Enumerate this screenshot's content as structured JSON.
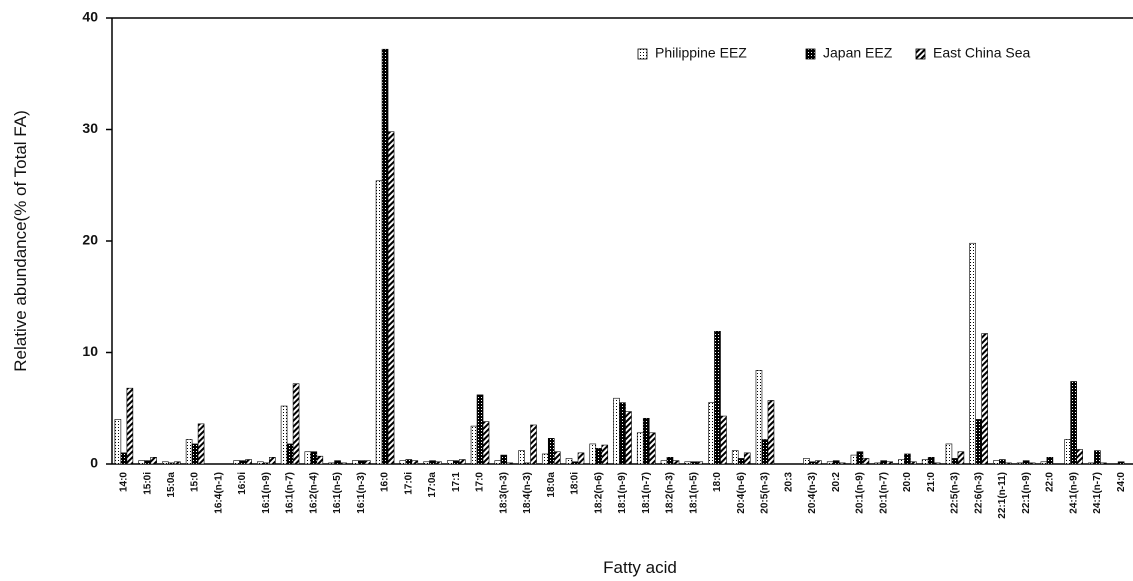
{
  "chart_data": {
    "type": "bar",
    "x_label": "Fatty acid",
    "y_label": "Relative abundance(% of Total FA)",
    "categories": [
      "14:0",
      "15:0i",
      "15:0a",
      "15:0",
      "16:4(n-1)",
      "16:0i",
      "16:1(n-9)",
      "16:1(n-7)",
      "16:2(n-4)",
      "16:1(n-5)",
      "16:1(n-3)",
      "16:0",
      "17:0i",
      "17:0a",
      "17:1",
      "17:0",
      "18:3(n-3)",
      "18:4(n-3)",
      "18:0a",
      "18:0i",
      "18:2(n-6)",
      "18:1(n-9)",
      "18:1(n-7)",
      "18:2(n-3)",
      "18:1(n-5)",
      "18:0",
      "20:4(n-6)",
      "20:5(n-3)",
      "20:3",
      "20:4(n-3)",
      "20:2",
      "20:1(n-9)",
      "20:1(n-7)",
      "20:0",
      "21:0",
      "22:5(n-3)",
      "22:6(n-3)",
      "22:1(n-11)",
      "22:1(n-9)",
      "22:0",
      "24:1(n-9)",
      "24:1(n-7)",
      "24:0"
    ],
    "series": [
      {
        "name": "Philippine EEZ",
        "color": "#000000",
        "pattern": "dots",
        "values": [
          4.0,
          0.3,
          0.2,
          2.2,
          0,
          0.3,
          0.2,
          5.2,
          1.1,
          0.1,
          0.3,
          25.4,
          0.3,
          0.2,
          0.3,
          3.4,
          0.3,
          1.2,
          0.9,
          0.5,
          1.8,
          5.9,
          2.8,
          0.3,
          0.2,
          5.5,
          1.2,
          8.4,
          0,
          0.5,
          0.2,
          0.8,
          0.1,
          0.4,
          0.4,
          1.8,
          19.8,
          0.3,
          0.1,
          0.2,
          2.2,
          0.1,
          0
        ]
      },
      {
        "name": "Japan EEZ",
        "color": "#000000",
        "pattern": "crosshatch",
        "values": [
          1.0,
          0.3,
          0.1,
          1.8,
          0,
          0.3,
          0.1,
          1.8,
          1.1,
          0.3,
          0.3,
          37.2,
          0.4,
          0.3,
          0.3,
          6.2,
          0.8,
          0.1,
          2.3,
          0.2,
          1.4,
          5.5,
          4.1,
          0.6,
          0.2,
          11.9,
          0.5,
          2.2,
          0,
          0.2,
          0.3,
          1.1,
          0.3,
          0.9,
          0.6,
          0.5,
          4.0,
          0.4,
          0.3,
          0.6,
          7.4,
          1.2,
          0.2
        ]
      },
      {
        "name": "East China Sea",
        "color": "#000000",
        "pattern": "hatch",
        "values": [
          6.8,
          0.6,
          0.2,
          3.6,
          0,
          0.4,
          0.6,
          7.2,
          0.7,
          0.1,
          0.3,
          29.8,
          0.3,
          0.2,
          0.4,
          3.8,
          0.1,
          3.5,
          1.1,
          1.0,
          1.7,
          4.7,
          2.8,
          0.3,
          0.2,
          4.3,
          1.0,
          5.7,
          0,
          0.3,
          0.1,
          0.5,
          0.2,
          0.2,
          0.1,
          1.1,
          11.7,
          0.1,
          0.1,
          0,
          1.3,
          0.1,
          0
        ]
      }
    ],
    "ylim": [
      0,
      40
    ],
    "yticks": [
      0,
      10,
      20,
      30,
      40
    ],
    "legend": "top-right"
  }
}
